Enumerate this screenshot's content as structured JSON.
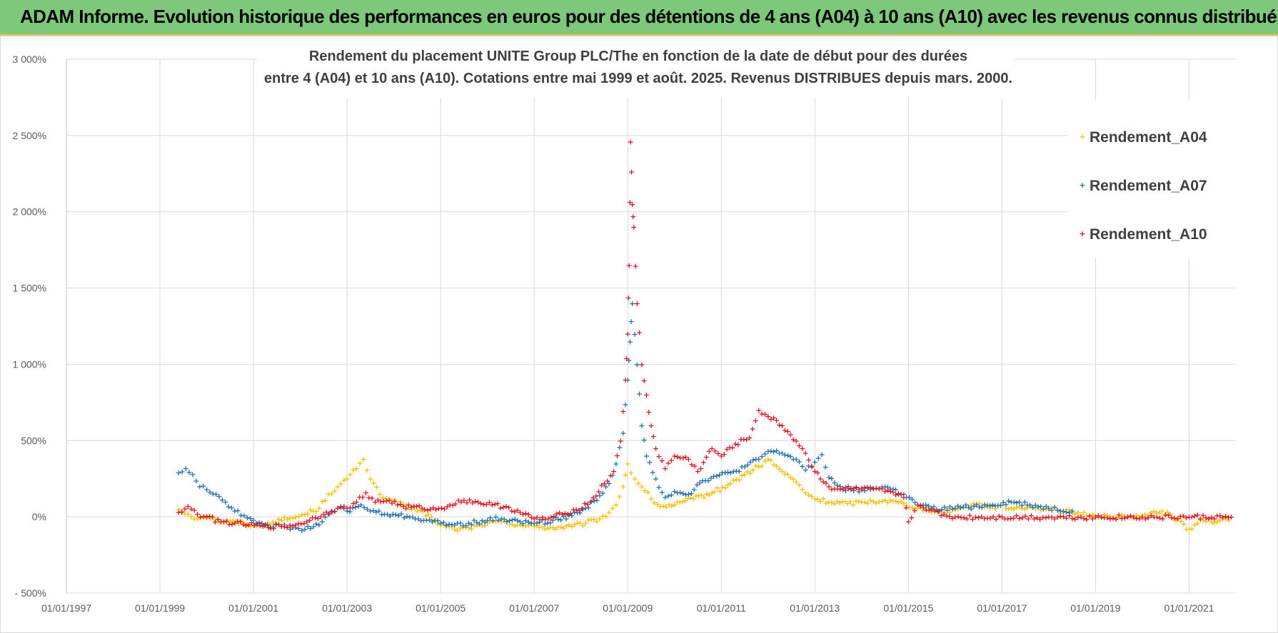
{
  "banner": {
    "title": "ADAM Informe. Evolution historique des performances en euros pour des détentions de 4 ans (A04) à 10 ans (A10) avec les revenus connus distribués"
  },
  "chart_data": {
    "type": "scatter",
    "title": [
      "Rendement du placement UNITE Group PLC/The en fonction de la date de début pour des durées",
      "entre 4 (A04) et 10 ans (A10).  Cotations entre mai 1999 et août. 2025. Revenus DISTRIBUES depuis mars. 2000."
    ],
    "xlabel": "",
    "ylabel": "",
    "x_ticks": [
      "01/01/1997",
      "01/01/1999",
      "01/01/2001",
      "01/01/2003",
      "01/01/2005",
      "01/01/2007",
      "01/01/2009",
      "01/01/2011",
      "01/01/2013",
      "01/01/2015",
      "01/01/2017",
      "01/01/2019",
      "01/01/2021"
    ],
    "x_range": [
      1997.0,
      2022.0
    ],
    "y_ticks": [
      "- 500%",
      "0%",
      "500%",
      "1 000%",
      "1 500%",
      "2 000%",
      "2 500%",
      "3 000%"
    ],
    "y_range": [
      -500,
      3000
    ],
    "y_unit": "%",
    "grid": true,
    "legend_position": "top-right",
    "marker": "+",
    "series": [
      {
        "name": "Rendement_A04",
        "color": "#f5c000",
        "points": [
          [
            1999.4,
            50
          ],
          [
            1999.6,
            20
          ],
          [
            1999.8,
            -10
          ],
          [
            2000.0,
            10
          ],
          [
            2000.2,
            -20
          ],
          [
            2000.5,
            -30
          ],
          [
            2000.8,
            -40
          ],
          [
            2001.0,
            -50
          ],
          [
            2001.3,
            -40
          ],
          [
            2001.6,
            -20
          ],
          [
            2001.9,
            0
          ],
          [
            2002.1,
            20
          ],
          [
            2002.4,
            60
          ],
          [
            2002.6,
            150
          ],
          [
            2002.8,
            200
          ],
          [
            2003.0,
            250
          ],
          [
            2003.2,
            320
          ],
          [
            2003.35,
            380
          ],
          [
            2003.5,
            250
          ],
          [
            2003.7,
            150
          ],
          [
            2003.9,
            120
          ],
          [
            2004.2,
            80
          ],
          [
            2004.5,
            40
          ],
          [
            2004.8,
            0
          ],
          [
            2005.0,
            -50
          ],
          [
            2005.3,
            -80
          ],
          [
            2005.6,
            -70
          ],
          [
            2006.0,
            -40
          ],
          [
            2006.3,
            -30
          ],
          [
            2006.7,
            -50
          ],
          [
            2007.0,
            -60
          ],
          [
            2007.4,
            -70
          ],
          [
            2007.8,
            -60
          ],
          [
            2008.1,
            -40
          ],
          [
            2008.4,
            -10
          ],
          [
            2008.6,
            30
          ],
          [
            2008.75,
            80
          ],
          [
            2008.9,
            200
          ],
          [
            2009.0,
            350
          ],
          [
            2009.15,
            250
          ],
          [
            2009.3,
            200
          ],
          [
            2009.5,
            120
          ],
          [
            2009.7,
            70
          ],
          [
            2010.0,
            80
          ],
          [
            2010.4,
            120
          ],
          [
            2010.8,
            160
          ],
          [
            2011.2,
            220
          ],
          [
            2011.5,
            280
          ],
          [
            2011.8,
            330
          ],
          [
            2012.0,
            380
          ],
          [
            2012.3,
            300
          ],
          [
            2012.6,
            230
          ],
          [
            2012.8,
            160
          ],
          [
            2013.0,
            120
          ],
          [
            2013.3,
            100
          ],
          [
            2013.7,
            90
          ],
          [
            2014.0,
            100
          ],
          [
            2014.5,
            110
          ],
          [
            2014.9,
            90
          ],
          [
            2015.2,
            60
          ],
          [
            2015.6,
            40
          ],
          [
            2016.0,
            50
          ],
          [
            2016.4,
            90
          ],
          [
            2016.8,
            70
          ],
          [
            2017.2,
            60
          ],
          [
            2017.6,
            70
          ],
          [
            2018.0,
            50
          ],
          [
            2018.5,
            30
          ],
          [
            2019.0,
            10
          ],
          [
            2019.5,
            0
          ],
          [
            2020.0,
            10
          ],
          [
            2020.3,
            30
          ],
          [
            2020.6,
            20
          ],
          [
            2021.0,
            -80
          ],
          [
            2021.3,
            -20
          ],
          [
            2021.6,
            -30
          ],
          [
            2021.9,
            0
          ]
        ]
      },
      {
        "name": "Rendement_A07",
        "color": "#1f6fb2",
        "points": [
          [
            1999.4,
            290
          ],
          [
            1999.55,
            320
          ],
          [
            1999.7,
            280
          ],
          [
            1999.85,
            200
          ],
          [
            2000.0,
            180
          ],
          [
            2000.2,
            150
          ],
          [
            2000.4,
            100
          ],
          [
            2000.6,
            40
          ],
          [
            2000.8,
            10
          ],
          [
            2001.0,
            -20
          ],
          [
            2001.3,
            -50
          ],
          [
            2001.6,
            -60
          ],
          [
            2001.9,
            -70
          ],
          [
            2002.1,
            -80
          ],
          [
            2002.4,
            -50
          ],
          [
            2002.6,
            20
          ],
          [
            2002.8,
            60
          ],
          [
            2003.0,
            40
          ],
          [
            2003.3,
            80
          ],
          [
            2003.5,
            40
          ],
          [
            2003.8,
            20
          ],
          [
            2004.1,
            10
          ],
          [
            2004.4,
            0
          ],
          [
            2004.7,
            -20
          ],
          [
            2005.0,
            -40
          ],
          [
            2005.3,
            -50
          ],
          [
            2005.6,
            -40
          ],
          [
            2006.0,
            -20
          ],
          [
            2006.3,
            -10
          ],
          [
            2006.7,
            -30
          ],
          [
            2007.0,
            -40
          ],
          [
            2007.4,
            -20
          ],
          [
            2007.8,
            10
          ],
          [
            2008.1,
            60
          ],
          [
            2008.4,
            140
          ],
          [
            2008.6,
            220
          ],
          [
            2008.75,
            350
          ],
          [
            2008.9,
            550
          ],
          [
            2009.0,
            900
          ],
          [
            2009.05,
            1150
          ],
          [
            2009.1,
            1400
          ],
          [
            2009.2,
            1000
          ],
          [
            2009.3,
            600
          ],
          [
            2009.4,
            400
          ],
          [
            2009.6,
            250
          ],
          [
            2009.8,
            130
          ],
          [
            2010.0,
            170
          ],
          [
            2010.3,
            150
          ],
          [
            2010.6,
            240
          ],
          [
            2010.9,
            270
          ],
          [
            2011.2,
            290
          ],
          [
            2011.5,
            330
          ],
          [
            2011.8,
            380
          ],
          [
            2012.0,
            430
          ],
          [
            2012.3,
            420
          ],
          [
            2012.6,
            380
          ],
          [
            2012.8,
            310
          ],
          [
            2013.0,
            360
          ],
          [
            2013.15,
            410
          ],
          [
            2013.3,
            260
          ],
          [
            2013.6,
            190
          ],
          [
            2014.0,
            180
          ],
          [
            2014.5,
            200
          ],
          [
            2014.9,
            150
          ],
          [
            2015.2,
            80
          ],
          [
            2015.6,
            50
          ],
          [
            2016.0,
            60
          ],
          [
            2016.4,
            70
          ],
          [
            2016.8,
            80
          ],
          [
            2017.2,
            100
          ],
          [
            2017.6,
            80
          ],
          [
            2018.0,
            60
          ],
          [
            2018.5,
            40
          ]
        ]
      },
      {
        "name": "Rendement_A10",
        "color": "#e8121c",
        "points": [
          [
            1999.4,
            30
          ],
          [
            1999.6,
            70
          ],
          [
            1999.8,
            20
          ],
          [
            2000.0,
            0
          ],
          [
            2000.3,
            -30
          ],
          [
            2000.6,
            -40
          ],
          [
            2000.9,
            -50
          ],
          [
            2001.2,
            -60
          ],
          [
            2001.6,
            -60
          ],
          [
            2001.9,
            -50
          ],
          [
            2002.2,
            -20
          ],
          [
            2002.5,
            20
          ],
          [
            2002.8,
            60
          ],
          [
            2003.0,
            60
          ],
          [
            2003.2,
            100
          ],
          [
            2003.4,
            160
          ],
          [
            2003.6,
            100
          ],
          [
            2003.9,
            110
          ],
          [
            2004.2,
            70
          ],
          [
            2004.6,
            60
          ],
          [
            2004.9,
            50
          ],
          [
            2005.2,
            80
          ],
          [
            2005.5,
            110
          ],
          [
            2005.8,
            100
          ],
          [
            2006.1,
            80
          ],
          [
            2006.4,
            70
          ],
          [
            2006.7,
            30
          ],
          [
            2007.0,
            -10
          ],
          [
            2007.3,
            -10
          ],
          [
            2007.6,
            20
          ],
          [
            2007.9,
            50
          ],
          [
            2008.2,
            100
          ],
          [
            2008.5,
            220
          ],
          [
            2008.7,
            300
          ],
          [
            2008.85,
            500
          ],
          [
            2008.95,
            900
          ],
          [
            2009.0,
            1200
          ],
          [
            2009.03,
            1650
          ],
          [
            2009.06,
            2460
          ],
          [
            2009.1,
            2050
          ],
          [
            2009.13,
            1900
          ],
          [
            2009.2,
            1400
          ],
          [
            2009.3,
            1000
          ],
          [
            2009.4,
            800
          ],
          [
            2009.5,
            600
          ],
          [
            2009.6,
            450
          ],
          [
            2009.8,
            320
          ],
          [
            2010.0,
            400
          ],
          [
            2010.3,
            380
          ],
          [
            2010.5,
            300
          ],
          [
            2010.8,
            450
          ],
          [
            2011.0,
            400
          ],
          [
            2011.3,
            480
          ],
          [
            2011.6,
            520
          ],
          [
            2011.8,
            700
          ],
          [
            2012.0,
            660
          ],
          [
            2012.3,
            600
          ],
          [
            2012.6,
            500
          ],
          [
            2012.8,
            420
          ],
          [
            2013.0,
            300
          ],
          [
            2013.3,
            200
          ],
          [
            2013.6,
            180
          ],
          [
            2014.0,
            190
          ],
          [
            2014.5,
            170
          ],
          [
            2014.9,
            130
          ],
          [
            2015.0,
            -30
          ],
          [
            2015.2,
            80
          ],
          [
            2015.5,
            50
          ],
          [
            2015.7,
            10
          ],
          [
            2016.0,
            0
          ],
          [
            2017.0,
            0
          ],
          [
            2018.0,
            0
          ],
          [
            2019.0,
            0
          ],
          [
            2020.0,
            0
          ],
          [
            2021.0,
            0
          ],
          [
            2021.9,
            0
          ]
        ]
      }
    ]
  }
}
